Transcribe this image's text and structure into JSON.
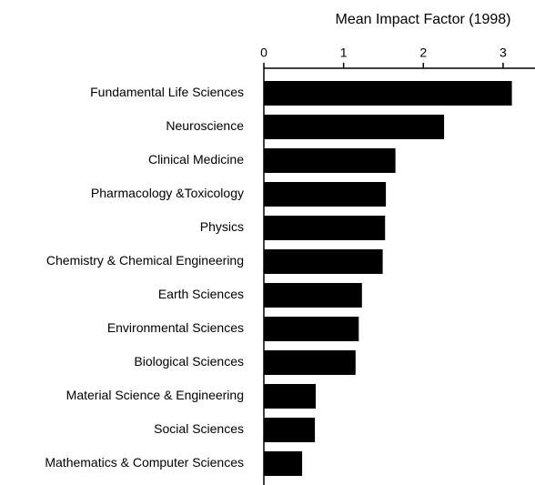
{
  "chart_data": {
    "type": "hbar",
    "title": "Mean Impact Factor (1998)",
    "categories": [
      "Fundamental Life Sciences",
      "Neuroscience",
      "Clinical Medicine",
      "Pharmacology &Toxicology",
      "Physics",
      "Chemistry & Chemical Engineering",
      "Earth Sciences",
      "Environmental Sciences",
      "Biological Sciences",
      "Material Science & Engineering",
      "Social Sciences",
      "Mathematics & Computer Sciences"
    ],
    "values": [
      3.11,
      2.26,
      1.65,
      1.53,
      1.52,
      1.49,
      1.23,
      1.19,
      1.15,
      0.65,
      0.64,
      0.48
    ],
    "color": "#000000",
    "xlim": [
      0,
      3.4
    ],
    "xticks": [
      0,
      1,
      2,
      3
    ],
    "grid": false
  }
}
